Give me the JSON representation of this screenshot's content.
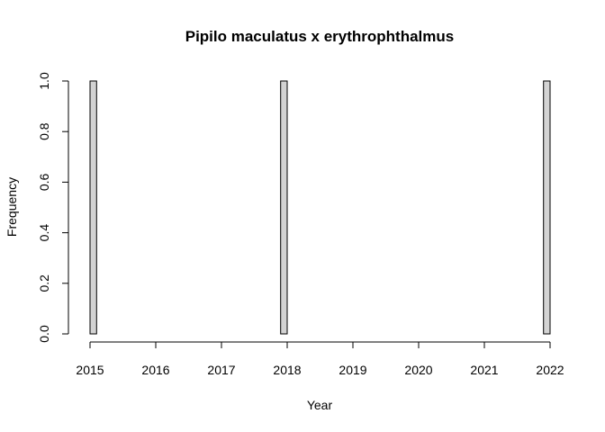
{
  "chart_data": {
    "type": "bar",
    "title": "Pipilo maculatus x erythrophthalmus",
    "xlabel": "Year",
    "ylabel": "Frequency",
    "xlim": [
      2015,
      2022
    ],
    "ylim": [
      0,
      1
    ],
    "x_ticks": [
      2015,
      2016,
      2017,
      2018,
      2019,
      2020,
      2021,
      2022
    ],
    "x_tick_labels": [
      "2015",
      "2016",
      "2017",
      "2018",
      "2019",
      "2020",
      "2021",
      "2022"
    ],
    "y_ticks": [
      0.0,
      0.2,
      0.4,
      0.6,
      0.8,
      1.0
    ],
    "y_tick_labels": [
      "0.0",
      "0.2",
      "0.4",
      "0.6",
      "0.8",
      "1.0"
    ],
    "bin_width": 0.1,
    "bins": [
      {
        "x0": 2015.0,
        "x1": 2015.1,
        "count": 1
      },
      {
        "x0": 2015.1,
        "x1": 2017.9,
        "count": 0
      },
      {
        "x0": 2017.9,
        "x1": 2018.0,
        "count": 1
      },
      {
        "x0": 2018.0,
        "x1": 2021.9,
        "count": 0
      },
      {
        "x0": 2021.9,
        "x1": 2022.0,
        "count": 1
      }
    ],
    "bar_fill": "#d3d3d3",
    "bar_stroke": "#000000",
    "grid": false
  }
}
